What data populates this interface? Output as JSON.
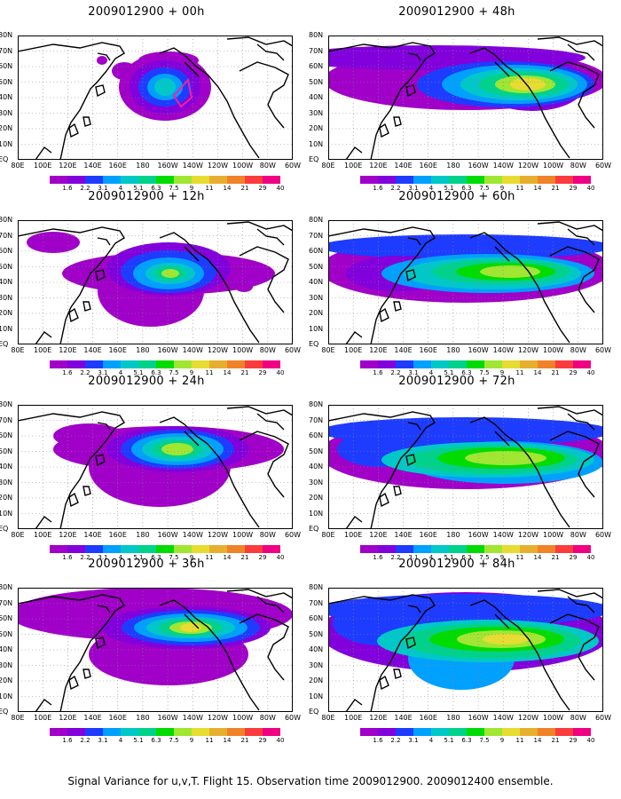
{
  "panels": [
    {
      "title": "2009012900 + 00h"
    },
    {
      "title": "2009012900 + 12h"
    },
    {
      "title": "2009012900 + 24h"
    },
    {
      "title": "2009012900 + 36h"
    },
    {
      "title": "2009012900 + 48h"
    },
    {
      "title": "2009012900 + 60h"
    },
    {
      "title": "2009012900 + 72h"
    },
    {
      "title": "2009012900 + 84h"
    }
  ],
  "axes": {
    "y_labels": [
      "80N",
      "70N",
      "60N",
      "50N",
      "40N",
      "30N",
      "20N",
      "10N",
      "EQ"
    ],
    "x_labels": [
      "80E",
      "100E",
      "120E",
      "140E",
      "160E",
      "180",
      "160W",
      "140W",
      "120W",
      "100W",
      "80W",
      "60W"
    ]
  },
  "colorbar": {
    "labels": [
      "1.6",
      "2.2",
      "3.1",
      "4",
      "5.1",
      "6.3",
      "7.5",
      "9",
      "11",
      "14",
      "21",
      "29",
      "40"
    ],
    "colors": [
      "#a000c8",
      "#8200dc",
      "#1e3cff",
      "#00a0ff",
      "#00c8c8",
      "#00d28c",
      "#00dc00",
      "#a0e632",
      "#e6dc32",
      "#e6af2d",
      "#f08228",
      "#fa3c3c",
      "#f00082"
    ]
  },
  "footer": "Signal Variance for u,v,T. Flight 15. Observation time 2009012900. 2009012400 ensemble."
}
